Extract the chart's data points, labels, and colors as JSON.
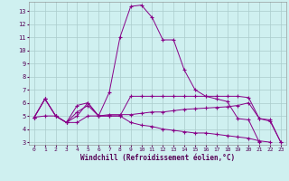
{
  "title": "",
  "xlabel": "Windchill (Refroidissement éolien,°C)",
  "bg_color": "#cff0f0",
  "line_color": "#880088",
  "grid_color": "#aacccc",
  "xlim": [
    -0.5,
    23.5
  ],
  "ylim": [
    2.8,
    13.7
  ],
  "yticks": [
    3,
    4,
    5,
    6,
    7,
    8,
    9,
    10,
    11,
    12,
    13
  ],
  "xticks": [
    0,
    1,
    2,
    3,
    4,
    5,
    6,
    7,
    8,
    9,
    10,
    11,
    12,
    13,
    14,
    15,
    16,
    17,
    18,
    19,
    20,
    21,
    22,
    23
  ],
  "line1_x": [
    0,
    1,
    2,
    3,
    4,
    5,
    6,
    7,
    8,
    9,
    10,
    11,
    12,
    13,
    14,
    15,
    16,
    17,
    18,
    19,
    20,
    21,
    22,
    23
  ],
  "line1_y": [
    4.9,
    6.3,
    5.0,
    4.5,
    5.8,
    6.0,
    5.0,
    6.8,
    11.0,
    13.35,
    13.45,
    12.5,
    10.8,
    10.8,
    8.5,
    7.0,
    6.5,
    6.3,
    6.1,
    4.8,
    4.7,
    3.0,
    null,
    null
  ],
  "line2_x": [
    0,
    1,
    2,
    3,
    4,
    5,
    6,
    7,
    8,
    9,
    10,
    11,
    12,
    13,
    14,
    15,
    16,
    17,
    18,
    19,
    20,
    21,
    22,
    23
  ],
  "line2_y": [
    4.9,
    6.3,
    5.0,
    4.5,
    5.3,
    5.8,
    5.0,
    5.1,
    5.1,
    5.1,
    5.2,
    5.3,
    5.3,
    5.4,
    5.5,
    5.55,
    5.6,
    5.65,
    5.7,
    5.8,
    6.0,
    4.8,
    4.6,
    3.0
  ],
  "line3_x": [
    0,
    1,
    2,
    3,
    4,
    5,
    6,
    7,
    8,
    9,
    10,
    11,
    12,
    13,
    14,
    15,
    16,
    17,
    18,
    19,
    20,
    21,
    22,
    23
  ],
  "line3_y": [
    4.9,
    5.0,
    5.0,
    4.5,
    4.5,
    5.0,
    5.0,
    5.0,
    5.0,
    4.5,
    4.3,
    4.2,
    4.0,
    3.9,
    3.8,
    3.7,
    3.7,
    3.6,
    3.5,
    3.4,
    3.3,
    3.1,
    3.0,
    null
  ],
  "line4_x": [
    0,
    1,
    2,
    3,
    4,
    5,
    6,
    7,
    8,
    9,
    10,
    11,
    12,
    13,
    14,
    15,
    16,
    17,
    18,
    19,
    20,
    21,
    22,
    23
  ],
  "line4_y": [
    4.9,
    6.3,
    5.0,
    4.5,
    5.0,
    6.0,
    5.0,
    5.0,
    5.0,
    6.5,
    6.5,
    6.5,
    6.5,
    6.5,
    6.5,
    6.5,
    6.5,
    6.5,
    6.5,
    6.5,
    6.4,
    4.8,
    4.7,
    3.0
  ]
}
